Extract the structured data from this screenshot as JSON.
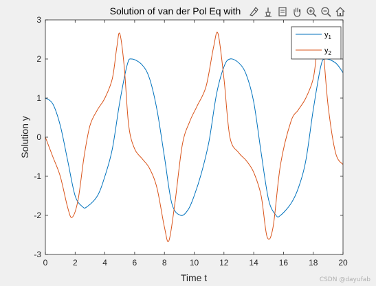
{
  "toolbar": {
    "icons": [
      "brush-icon",
      "data-tips-icon",
      "export-icon",
      "pan-icon",
      "zoom-in-icon",
      "zoom-out-icon",
      "home-icon"
    ]
  },
  "watermark": "CSDN @dayufab",
  "chart_data": {
    "type": "line",
    "title": "Solution of van der Pol Eq with",
    "xlabel": "Time t",
    "ylabel": "Solution y",
    "xlim": [
      0,
      20
    ],
    "ylim": [
      -3,
      3
    ],
    "xticks": [
      0,
      2,
      4,
      6,
      8,
      10,
      12,
      14,
      16,
      18,
      20
    ],
    "yticks": [
      -3,
      -2,
      -1,
      0,
      1,
      2,
      3
    ],
    "grid": false,
    "legend_position": "top-right",
    "series": [
      {
        "name": "y1",
        "color": "#0072bd",
        "x": [
          0,
          0.5,
          1,
          1.5,
          2,
          2.5,
          2.8,
          3.5,
          4,
          4.5,
          5,
          5.5,
          5.8,
          6.5,
          7,
          7.5,
          8,
          8.5,
          9.1,
          9.6,
          10,
          10.5,
          11,
          11.5,
          12,
          12.4,
          13,
          13.5,
          14,
          14.5,
          15,
          15.5,
          15.8,
          16.5,
          17,
          17.5,
          18,
          18.5,
          18.8,
          19.5,
          20
        ],
        "y": [
          1.0,
          0.85,
          0.3,
          -0.6,
          -1.5,
          -1.78,
          -1.78,
          -1.5,
          -1.0,
          -0.3,
          0.9,
          1.85,
          2.0,
          1.85,
          1.5,
          0.7,
          -0.5,
          -1.7,
          -2.0,
          -1.85,
          -1.5,
          -0.9,
          -0.1,
          1.1,
          1.8,
          2.0,
          1.9,
          1.6,
          0.9,
          -0.4,
          -1.6,
          -2.0,
          -2.0,
          -1.7,
          -1.3,
          -0.6,
          0.7,
          1.8,
          2.0,
          1.9,
          1.65
        ]
      },
      {
        "name": "y2",
        "color": "#d95319",
        "x": [
          0,
          0.5,
          1,
          1.5,
          1.8,
          2.2,
          2.6,
          3,
          3.5,
          4,
          4.5,
          4.8,
          5,
          5.3,
          5.6,
          6,
          6.5,
          7,
          7.5,
          8,
          8.3,
          8.7,
          9.2,
          9.7,
          10.2,
          10.8,
          11.3,
          11.6,
          12,
          12.4,
          13,
          13.5,
          14,
          14.5,
          14.9,
          15.3,
          15.8,
          16.5,
          17,
          17.5,
          18,
          18.3,
          18.6,
          19,
          19.5,
          20
        ],
        "y": [
          0.0,
          -0.5,
          -1.0,
          -1.8,
          -2.05,
          -1.6,
          -0.5,
          0.3,
          0.7,
          1.0,
          1.5,
          2.3,
          2.65,
          1.8,
          0.3,
          -0.3,
          -0.55,
          -0.8,
          -1.3,
          -2.3,
          -2.65,
          -1.7,
          -0.2,
          0.4,
          0.8,
          1.3,
          2.3,
          2.65,
          1.5,
          0.0,
          -0.4,
          -0.6,
          -0.9,
          -1.5,
          -2.55,
          -2.3,
          -0.7,
          0.4,
          0.7,
          1.0,
          1.5,
          2.3,
          2.45,
          0.8,
          -0.4,
          -0.7
        ]
      }
    ]
  }
}
